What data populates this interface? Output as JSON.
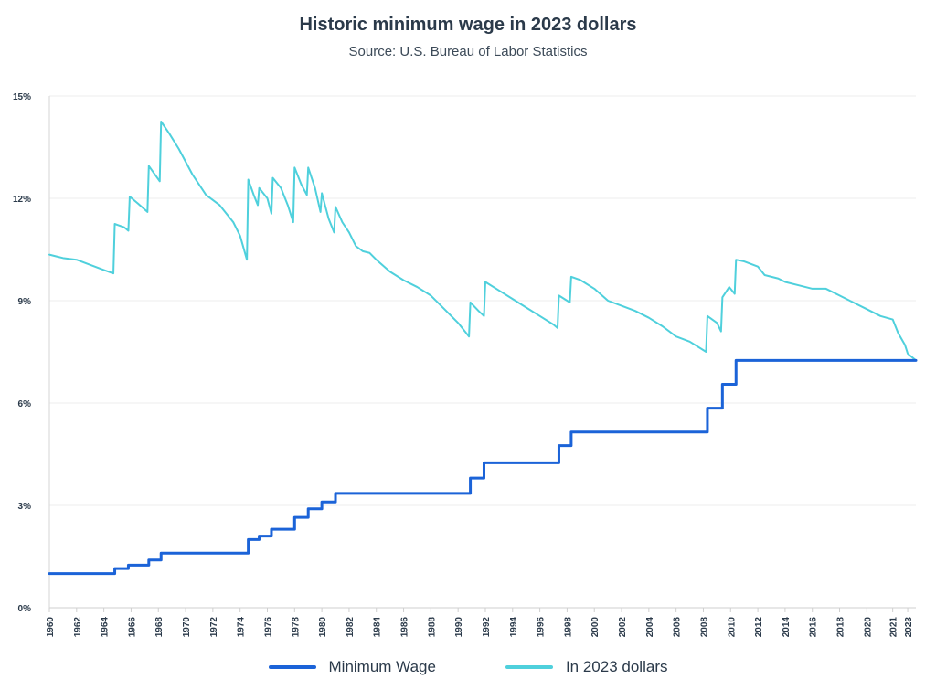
{
  "chart_data": {
    "type": "line",
    "title": "Historic minimum wage in 2023 dollars",
    "subtitle": "Source: U.S. Bureau of Labor Statistics",
    "xlim": [
      1960,
      2023.6
    ],
    "ylim": [
      0,
      15
    ],
    "y_ticks": [
      {
        "value": 0,
        "label": "0%"
      },
      {
        "value": 3,
        "label": "3%"
      },
      {
        "value": 6,
        "label": "6%"
      },
      {
        "value": 9,
        "label": "9%"
      },
      {
        "value": 12,
        "label": "12%"
      },
      {
        "value": 15,
        "label": "15%"
      }
    ],
    "x_ticks": [
      {
        "value": 1960,
        "label": "1960"
      },
      {
        "value": 1962,
        "label": "1962"
      },
      {
        "value": 1964,
        "label": "1964"
      },
      {
        "value": 1966,
        "label": "1966"
      },
      {
        "value": 1968,
        "label": "1968"
      },
      {
        "value": 1970,
        "label": "1970"
      },
      {
        "value": 1972,
        "label": "1972"
      },
      {
        "value": 1974,
        "label": "1974"
      },
      {
        "value": 1976,
        "label": "1976"
      },
      {
        "value": 1978,
        "label": "1978"
      },
      {
        "value": 1980,
        "label": "1980"
      },
      {
        "value": 1982,
        "label": "1982"
      },
      {
        "value": 1984,
        "label": "1984"
      },
      {
        "value": 1986,
        "label": "1986"
      },
      {
        "value": 1988,
        "label": "1988"
      },
      {
        "value": 1990,
        "label": "1990"
      },
      {
        "value": 1992,
        "label": "1992"
      },
      {
        "value": 1994,
        "label": "1994"
      },
      {
        "value": 1996,
        "label": "1996"
      },
      {
        "value": 1998,
        "label": "1998"
      },
      {
        "value": 2000,
        "label": "2000"
      },
      {
        "value": 2002,
        "label": "2002"
      },
      {
        "value": 2004,
        "label": "2004"
      },
      {
        "value": 2006,
        "label": "2006"
      },
      {
        "value": 2008,
        "label": "2008"
      },
      {
        "value": 2010,
        "label": "2010"
      },
      {
        "value": 2012,
        "label": "2012"
      },
      {
        "value": 2014,
        "label": "2014"
      },
      {
        "value": 2016,
        "label": "2016"
      },
      {
        "value": 2018,
        "label": "2018"
      },
      {
        "value": 2020,
        "label": "2020"
      },
      {
        "value": 2021.9,
        "label": "2021"
      },
      {
        "value": 2023,
        "label": "2023"
      }
    ],
    "grid": true,
    "legend_position": "bottom",
    "series": [
      {
        "name": "Minimum Wage",
        "color": "#1b63d8",
        "step": true,
        "points": [
          [
            1960,
            1.0
          ],
          [
            1964.8,
            1.0
          ],
          [
            1964.8,
            1.15
          ],
          [
            1965.8,
            1.15
          ],
          [
            1965.8,
            1.25
          ],
          [
            1967.3,
            1.25
          ],
          [
            1967.3,
            1.4
          ],
          [
            1968.2,
            1.4
          ],
          [
            1968.2,
            1.6
          ],
          [
            1974.6,
            1.6
          ],
          [
            1974.6,
            2.0
          ],
          [
            1975.4,
            2.0
          ],
          [
            1975.4,
            2.1
          ],
          [
            1976.3,
            2.1
          ],
          [
            1976.3,
            2.3
          ],
          [
            1978.0,
            2.3
          ],
          [
            1978.0,
            2.65
          ],
          [
            1979.0,
            2.65
          ],
          [
            1979.0,
            2.9
          ],
          [
            1980.0,
            2.9
          ],
          [
            1980.0,
            3.1
          ],
          [
            1981.0,
            3.1
          ],
          [
            1981.0,
            3.35
          ],
          [
            1990.9,
            3.35
          ],
          [
            1990.9,
            3.8
          ],
          [
            1991.9,
            3.8
          ],
          [
            1991.9,
            4.25
          ],
          [
            1997.4,
            4.25
          ],
          [
            1997.4,
            4.75
          ],
          [
            1998.3,
            4.75
          ],
          [
            1998.3,
            5.15
          ],
          [
            2008.3,
            5.15
          ],
          [
            2008.3,
            5.85
          ],
          [
            2009.4,
            5.85
          ],
          [
            2009.4,
            6.55
          ],
          [
            2010.4,
            6.55
          ],
          [
            2010.4,
            7.25
          ],
          [
            2023.6,
            7.25
          ]
        ]
      },
      {
        "name": "In 2023 dollars",
        "color": "#4fd0dc",
        "step": false,
        "points": [
          [
            1960.0,
            10.35
          ],
          [
            1960.5,
            10.3
          ],
          [
            1961.0,
            10.25
          ],
          [
            1962.0,
            10.2
          ],
          [
            1963.0,
            10.05
          ],
          [
            1964.0,
            9.9
          ],
          [
            1964.7,
            9.8
          ],
          [
            1964.8,
            11.25
          ],
          [
            1965.5,
            11.15
          ],
          [
            1965.8,
            11.05
          ],
          [
            1965.9,
            12.05
          ],
          [
            1966.5,
            11.85
          ],
          [
            1967.2,
            11.6
          ],
          [
            1967.3,
            12.95
          ],
          [
            1968.1,
            12.5
          ],
          [
            1968.2,
            14.25
          ],
          [
            1968.8,
            13.9
          ],
          [
            1969.5,
            13.45
          ],
          [
            1970.5,
            12.7
          ],
          [
            1971.5,
            12.1
          ],
          [
            1972.5,
            11.8
          ],
          [
            1973.5,
            11.3
          ],
          [
            1974.0,
            10.9
          ],
          [
            1974.5,
            10.2
          ],
          [
            1974.6,
            12.55
          ],
          [
            1975.0,
            12.1
          ],
          [
            1975.3,
            11.8
          ],
          [
            1975.4,
            12.3
          ],
          [
            1976.0,
            12.0
          ],
          [
            1976.3,
            11.55
          ],
          [
            1976.4,
            12.6
          ],
          [
            1977.0,
            12.3
          ],
          [
            1977.5,
            11.8
          ],
          [
            1977.9,
            11.3
          ],
          [
            1978.0,
            12.9
          ],
          [
            1978.5,
            12.4
          ],
          [
            1978.9,
            12.1
          ],
          [
            1979.0,
            12.9
          ],
          [
            1979.5,
            12.3
          ],
          [
            1979.9,
            11.6
          ],
          [
            1980.0,
            12.15
          ],
          [
            1980.5,
            11.4
          ],
          [
            1980.9,
            11.0
          ],
          [
            1981.0,
            11.75
          ],
          [
            1981.5,
            11.3
          ],
          [
            1982.0,
            11.0
          ],
          [
            1982.5,
            10.6
          ],
          [
            1983.0,
            10.45
          ],
          [
            1983.5,
            10.4
          ],
          [
            1984.0,
            10.2
          ],
          [
            1985.0,
            9.85
          ],
          [
            1986.0,
            9.6
          ],
          [
            1987.0,
            9.4
          ],
          [
            1988.0,
            9.15
          ],
          [
            1989.0,
            8.75
          ],
          [
            1990.0,
            8.35
          ],
          [
            1990.8,
            7.95
          ],
          [
            1990.9,
            8.95
          ],
          [
            1991.5,
            8.7
          ],
          [
            1991.9,
            8.55
          ],
          [
            1992.0,
            9.55
          ],
          [
            1993.0,
            9.3
          ],
          [
            1994.0,
            9.05
          ],
          [
            1995.0,
            8.8
          ],
          [
            1996.0,
            8.55
          ],
          [
            1997.0,
            8.3
          ],
          [
            1997.3,
            8.2
          ],
          [
            1997.4,
            9.15
          ],
          [
            1998.2,
            8.95
          ],
          [
            1998.3,
            9.7
          ],
          [
            1999.0,
            9.6
          ],
          [
            2000.0,
            9.35
          ],
          [
            2001.0,
            9.0
          ],
          [
            2002.0,
            8.85
          ],
          [
            2003.0,
            8.7
          ],
          [
            2004.0,
            8.5
          ],
          [
            2005.0,
            8.25
          ],
          [
            2006.0,
            7.95
          ],
          [
            2007.0,
            7.8
          ],
          [
            2008.0,
            7.55
          ],
          [
            2008.2,
            7.5
          ],
          [
            2008.3,
            8.55
          ],
          [
            2009.0,
            8.35
          ],
          [
            2009.3,
            8.1
          ],
          [
            2009.4,
            9.1
          ],
          [
            2009.9,
            9.4
          ],
          [
            2010.3,
            9.2
          ],
          [
            2010.4,
            10.2
          ],
          [
            2011.0,
            10.15
          ],
          [
            2012.0,
            10.0
          ],
          [
            2012.5,
            9.75
          ],
          [
            2013.5,
            9.65
          ],
          [
            2014.0,
            9.55
          ],
          [
            2015.0,
            9.45
          ],
          [
            2016.0,
            9.35
          ],
          [
            2017.0,
            9.35
          ],
          [
            2018.0,
            9.15
          ],
          [
            2019.0,
            8.95
          ],
          [
            2020.0,
            8.75
          ],
          [
            2021.0,
            8.55
          ],
          [
            2021.9,
            8.45
          ],
          [
            2022.3,
            8.05
          ],
          [
            2022.8,
            7.7
          ],
          [
            2023.0,
            7.45
          ],
          [
            2023.6,
            7.25
          ]
        ]
      }
    ]
  }
}
